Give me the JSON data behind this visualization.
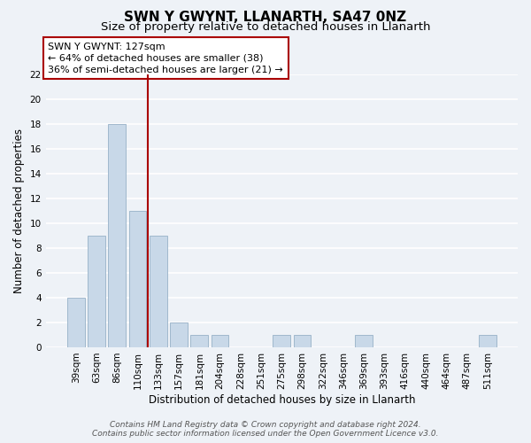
{
  "title": "SWN Y GWYNT, LLANARTH, SA47 0NZ",
  "subtitle": "Size of property relative to detached houses in Llanarth",
  "xlabel": "Distribution of detached houses by size in Llanarth",
  "ylabel": "Number of detached properties",
  "bar_labels": [
    "39sqm",
    "63sqm",
    "86sqm",
    "110sqm",
    "133sqm",
    "157sqm",
    "181sqm",
    "204sqm",
    "228sqm",
    "251sqm",
    "275sqm",
    "298sqm",
    "322sqm",
    "346sqm",
    "369sqm",
    "393sqm",
    "416sqm",
    "440sqm",
    "464sqm",
    "487sqm",
    "511sqm"
  ],
  "bar_values": [
    4,
    9,
    18,
    11,
    9,
    2,
    1,
    1,
    0,
    0,
    1,
    1,
    0,
    0,
    1,
    0,
    0,
    0,
    0,
    0,
    1
  ],
  "bar_color": "#c8d8e8",
  "bar_edge_color": "#a0b8cc",
  "red_line_x": 3.5,
  "highlight_line_color": "#aa0000",
  "annotation_text": "SWN Y GWYNT: 127sqm\n← 64% of detached houses are smaller (38)\n36% of semi-detached houses are larger (21) →",
  "annotation_box_color": "#ffffff",
  "annotation_box_edge_color": "#aa0000",
  "ylim": [
    0,
    22
  ],
  "yticks": [
    0,
    2,
    4,
    6,
    8,
    10,
    12,
    14,
    16,
    18,
    20,
    22
  ],
  "footer": "Contains HM Land Registry data © Crown copyright and database right 2024.\nContains public sector information licensed under the Open Government Licence v3.0.",
  "background_color": "#eef2f7",
  "grid_color": "#ffffff",
  "title_fontsize": 11,
  "subtitle_fontsize": 9.5,
  "axis_label_fontsize": 8.5,
  "tick_fontsize": 7.5,
  "annotation_fontsize": 8,
  "footer_fontsize": 6.5
}
